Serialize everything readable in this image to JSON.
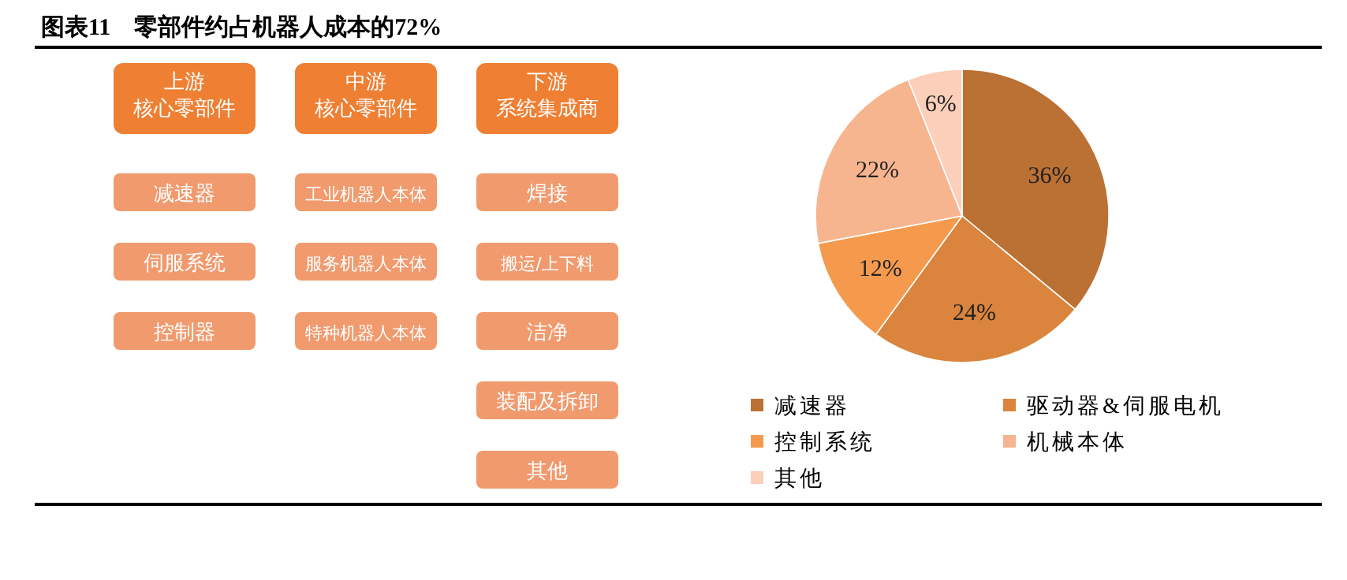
{
  "chart_data": [
    {
      "type": "other",
      "title": "图表11　零部件约占机器人成本的72%",
      "categories": [
        "上游核心零部件",
        "中游核心零部件",
        "下游系统集成商"
      ],
      "colors": [
        "#ee7f33",
        "#f09a6e"
      ],
      "annotations": [
        {
          "text": "减速器",
          "x": "上游核心零部件"
        },
        {
          "text": "伺服系统",
          "x": "上游核心零部件"
        },
        {
          "text": "控制器",
          "x": "上游核心零部件"
        },
        {
          "text": "工业机器人本体",
          "x": "中游核心零部件"
        },
        {
          "text": "服务机器人本体",
          "x": "中游核心零部件"
        },
        {
          "text": "特种机器人本体",
          "x": "中游核心零部件"
        },
        {
          "text": "焊接",
          "x": "下游系统集成商"
        },
        {
          "text": "搬运/上下料",
          "x": "下游系统集成商"
        },
        {
          "text": "洁净",
          "x": "下游系统集成商"
        },
        {
          "text": "装配及拆卸",
          "x": "下游系统集成商"
        },
        {
          "text": "其他",
          "x": "下游系统集成商"
        }
      ]
    },
    {
      "type": "pie",
      "categories": [
        "减速器",
        "驱动器&伺服电机",
        "控制系统",
        "机械本体",
        "其他"
      ],
      "values": [
        36,
        24,
        12,
        22,
        6
      ],
      "value_labels": [
        "36%",
        "24%",
        "12%",
        "22%",
        "6%"
      ],
      "colors": [
        "#bb7133",
        "#da843d",
        "#f59a4d",
        "#f7b58f",
        "#fbcfb9"
      ],
      "legend": "bottom"
    }
  ]
}
